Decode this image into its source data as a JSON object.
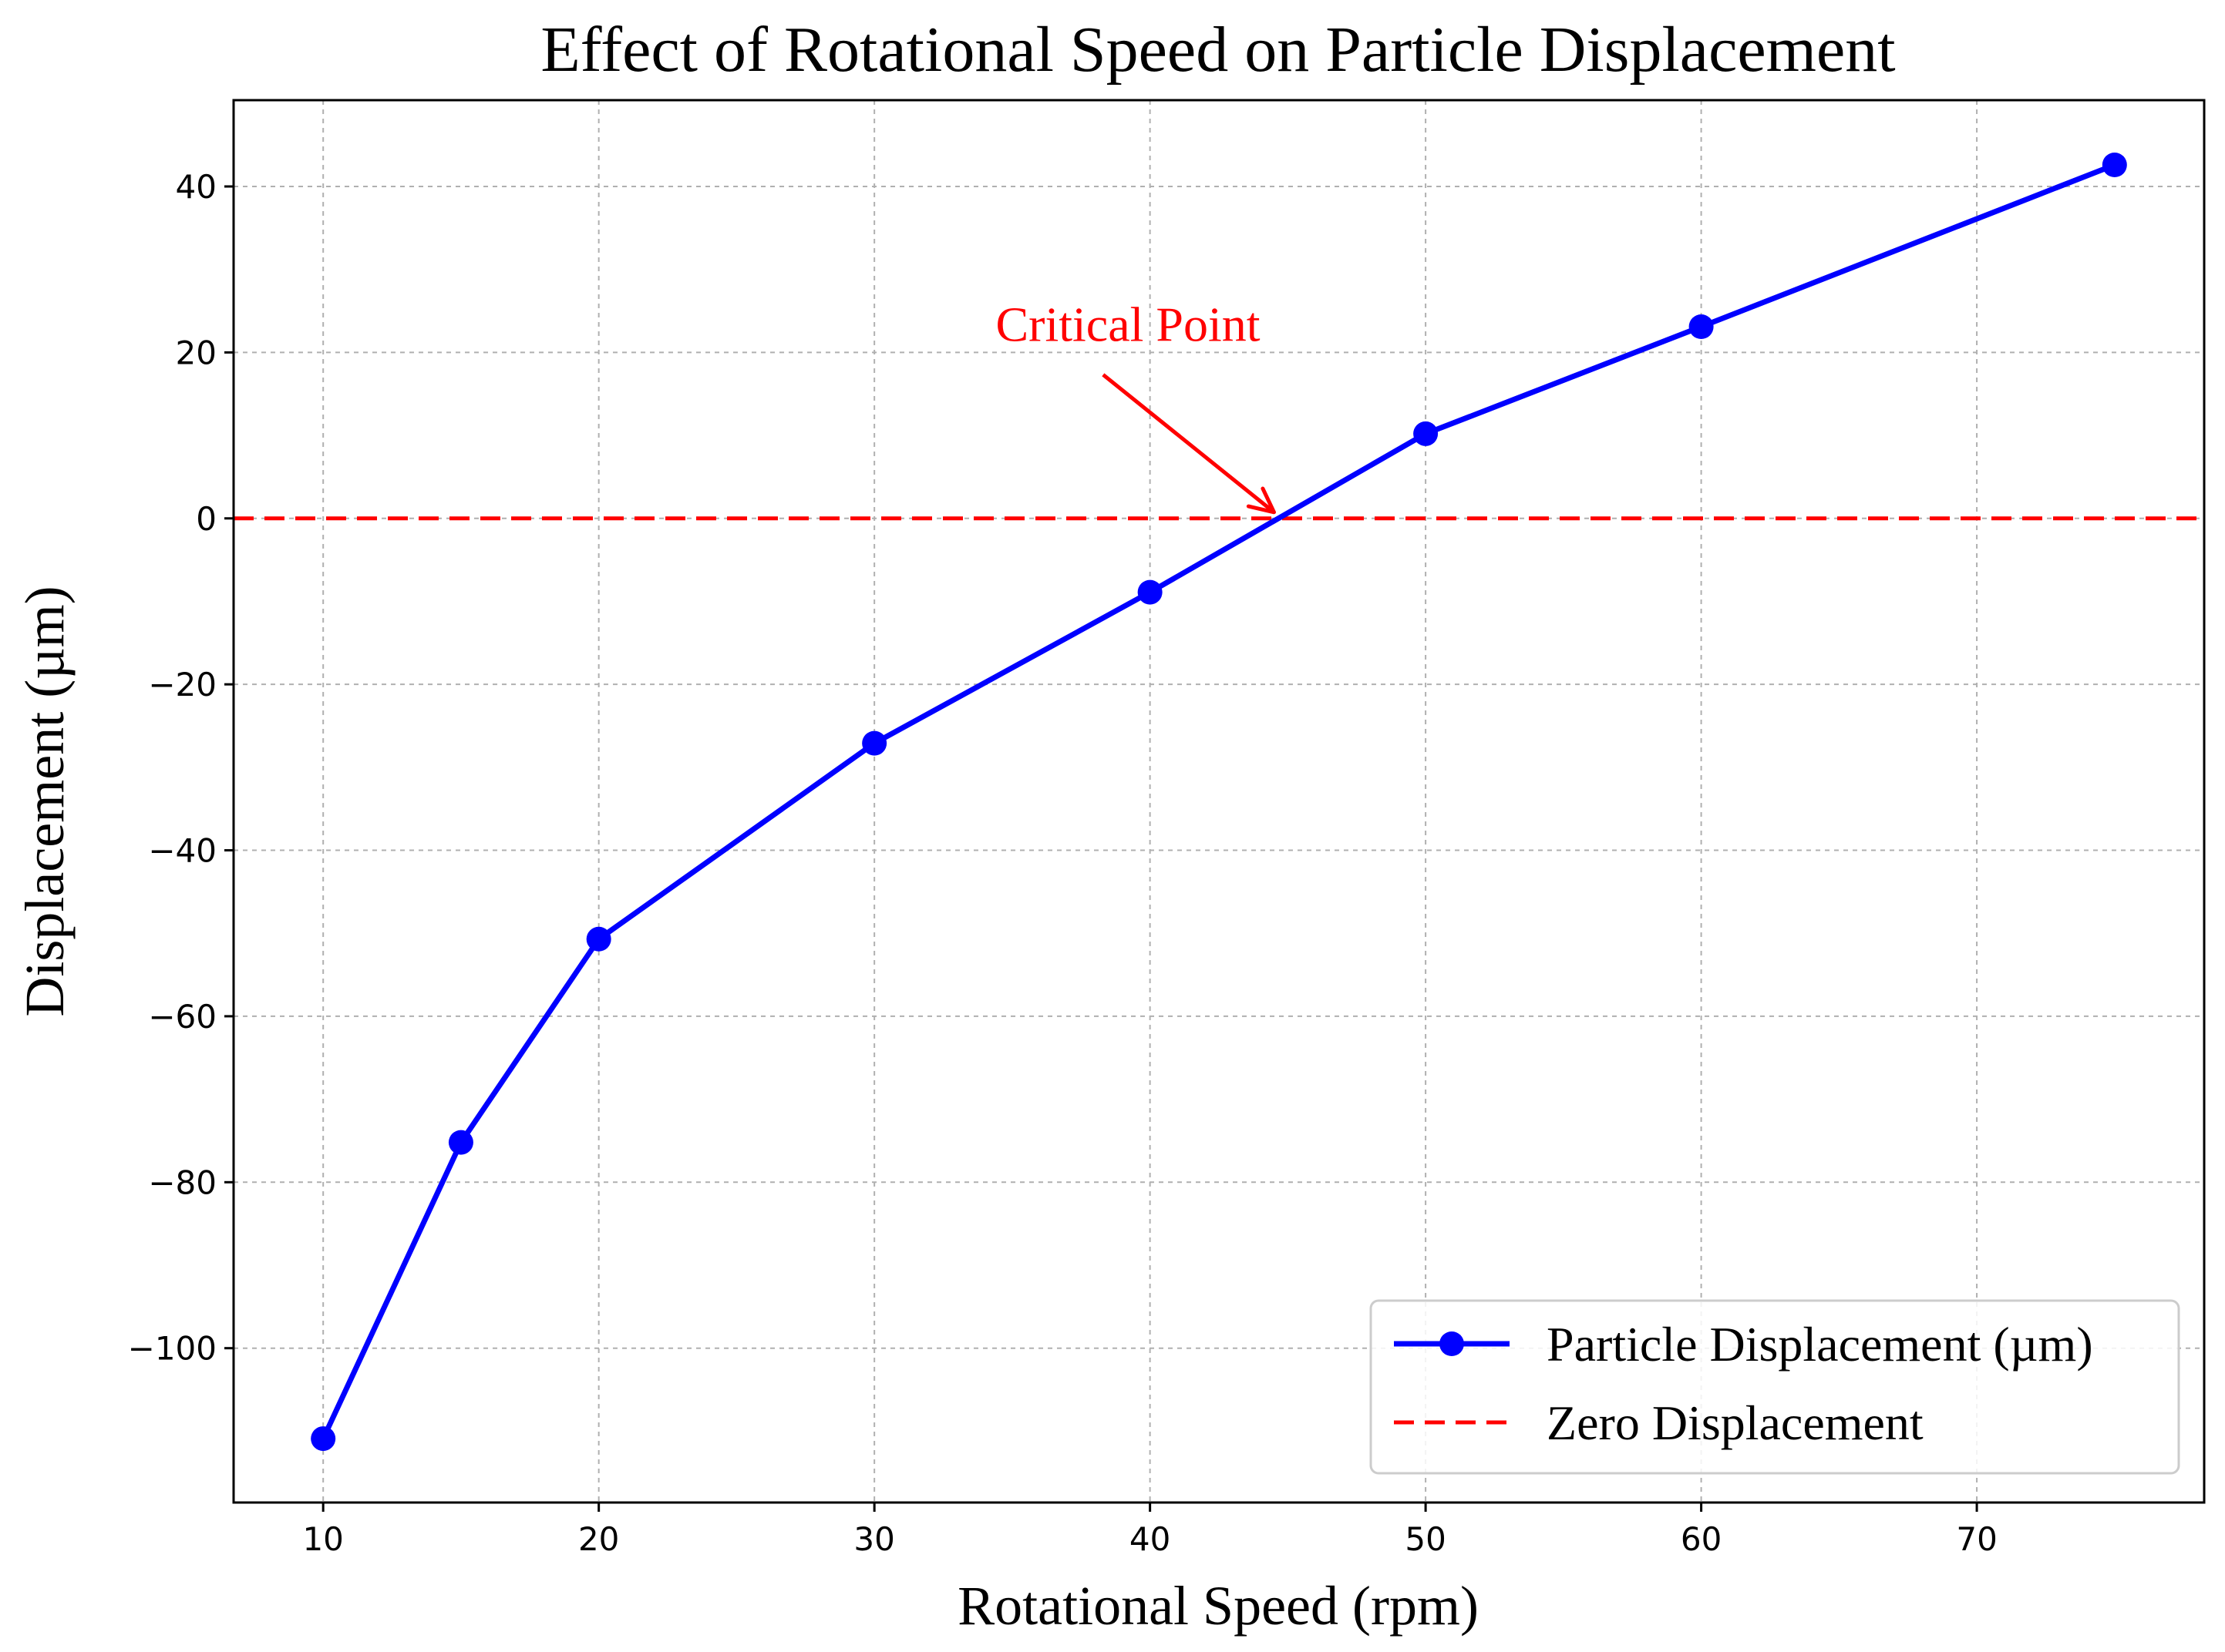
{
  "chart_data": {
    "type": "line",
    "title": "Effect of Rotational Speed on Particle Displacement",
    "xlabel": "Rotational Speed (rpm)",
    "ylabel": "Displacement (µm)",
    "xlim": [
      6.75,
      78.25
    ],
    "ylim": [
      -118.6,
      50.4
    ],
    "xticks": [
      10,
      20,
      30,
      40,
      50,
      60,
      70
    ],
    "xtick_labels": [
      "10",
      "20",
      "30",
      "40",
      "50",
      "60",
      "70"
    ],
    "yticks": [
      -100,
      -80,
      -60,
      -40,
      -20,
      0,
      20,
      40
    ],
    "ytick_labels": [
      "−100",
      "−80",
      "−60",
      "−40",
      "−20",
      "0",
      "20",
      "40"
    ],
    "grid": true,
    "series": [
      {
        "name": "Particle Displacement (µm)",
        "color": "#0000ff",
        "marker": "circle",
        "style": "solid",
        "x": [
          10,
          15,
          20,
          30,
          40,
          50,
          60,
          75
        ],
        "y": [
          -110.9,
          -75.2,
          -50.7,
          -27.1,
          -8.9,
          10.2,
          23.1,
          42.6
        ]
      },
      {
        "name": "Zero Displacement",
        "color": "#ff0000",
        "style": "dashed",
        "type": "hline",
        "y": 0
      }
    ],
    "annotations": [
      {
        "text": "Critical Point",
        "color": "#ff0000",
        "text_at": [
          34.4,
          21.4
        ],
        "arrow_to": [
          44.5,
          0
        ]
      }
    ],
    "legend_position": "lower-right"
  }
}
